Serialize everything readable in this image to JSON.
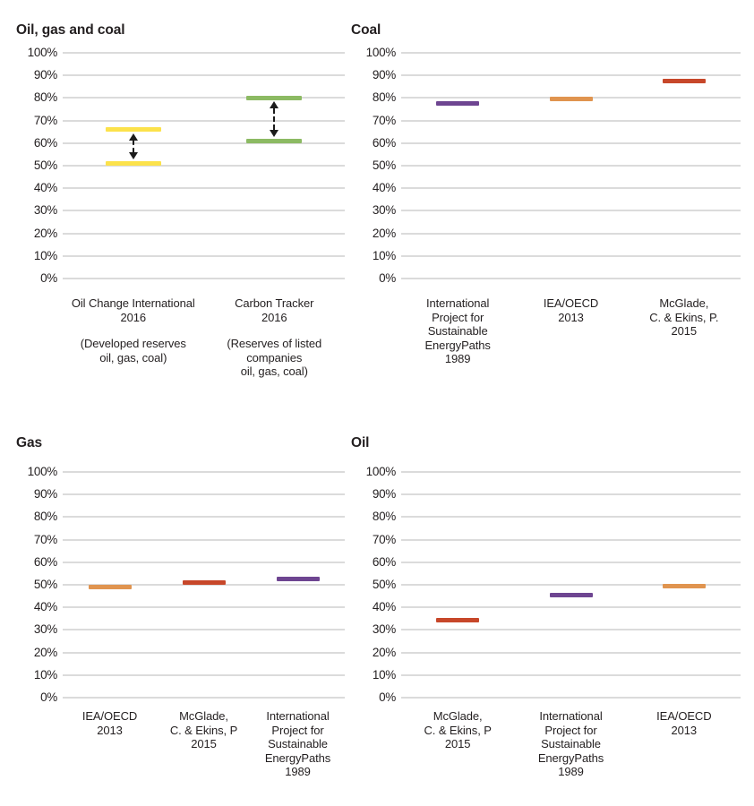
{
  "y_axis": {
    "tick_labels": [
      "100%",
      "90%",
      "80%",
      "70%",
      "60%",
      "50%",
      "40%",
      "30%",
      "20%",
      "10%",
      "0%"
    ],
    "min": 0,
    "max": 100
  },
  "colors": {
    "yellow": "#FCE24B",
    "green": "#8CBA63",
    "purple": "#6E4591",
    "orange": "#E0944F",
    "red": "#C7472A",
    "gridline": "#DBDBDB",
    "text": "#231F20",
    "arrow": "#1B1B1B"
  },
  "chart_data": [
    {
      "type": "range-bar",
      "title": "Oil, gas and coal",
      "ylabel": "",
      "ylim": [
        0,
        100
      ],
      "grid": true,
      "points": [
        {
          "label": "Oil Change International\n2016",
          "sublabel": "(Developed reserves\noil, gas, coal)",
          "low": 51,
          "high": 66,
          "color": "#FCE24B",
          "arrow": true
        },
        {
          "label": "Carbon Tracker\n2016",
          "sublabel": "(Reserves of listed\ncompanies\noil, gas, coal)",
          "low": 61,
          "high": 80,
          "color": "#8CBA63",
          "arrow": true
        }
      ]
    },
    {
      "type": "tick-marker",
      "title": "Coal",
      "ylabel": "",
      "ylim": [
        0,
        100
      ],
      "grid": true,
      "points": [
        {
          "label": "International\nProject for\nSustainable\nEnergyPaths\n1989",
          "value": 77.5,
          "color": "#6E4591"
        },
        {
          "label": "IEA/OECD\n2013",
          "value": 79.5,
          "color": "#E0944F"
        },
        {
          "label": "McGlade,\nC. & Ekins, P.\n2015",
          "value": 87.5,
          "color": "#C7472A"
        }
      ]
    },
    {
      "type": "tick-marker",
      "title": "Gas",
      "ylabel": "",
      "ylim": [
        0,
        100
      ],
      "grid": true,
      "points": [
        {
          "label": "IEA/OECD\n2013",
          "value": 49,
          "color": "#E0944F"
        },
        {
          "label": "McGlade,\nC. & Ekins, P\n2015",
          "value": 51,
          "color": "#C7472A"
        },
        {
          "label": "International\nProject for\nSustainable\nEnergyPaths\n1989",
          "value": 52.5,
          "color": "#6E4591"
        }
      ]
    },
    {
      "type": "tick-marker",
      "title": "Oil",
      "ylabel": "",
      "ylim": [
        0,
        100
      ],
      "grid": true,
      "points": [
        {
          "label": "McGlade,\nC. & Ekins, P\n2015",
          "value": 34.5,
          "color": "#C7472A"
        },
        {
          "label": "International\nProject for\nSustainable\nEnergyPaths\n1989",
          "value": 45.5,
          "color": "#6E4591"
        },
        {
          "label": "IEA/OECD\n2013",
          "value": 49.5,
          "color": "#E0944F"
        }
      ]
    }
  ]
}
